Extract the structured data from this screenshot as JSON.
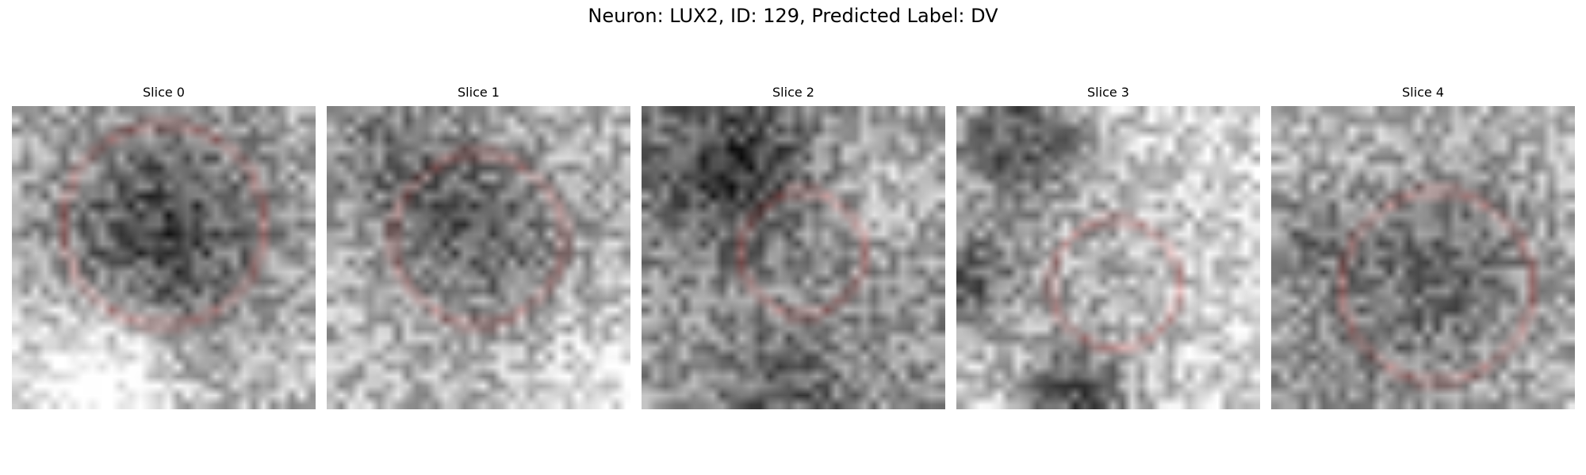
{
  "figure": {
    "title": "Neuron: LUX2, ID: 129, Predicted Label: DV",
    "contour_color": "#e31a1c",
    "colormap": "grayscale"
  },
  "panels": [
    {
      "title": "Slice 0",
      "seed": 11,
      "blobs": [
        [
          15.5,
          13.0,
          7.5,
          0.42
        ],
        [
          8,
          29,
          6,
          -0.45
        ],
        [
          29,
          27,
          3,
          -0.12
        ]
      ],
      "baseline": 0.68,
      "contour": {
        "center": [
          16.0,
          12.5
        ],
        "radius": 10.6
      }
    },
    {
      "seed": 23,
      "title": "Slice 1",
      "blobs": [
        [
          15.5,
          13.0,
          6.5,
          0.32
        ],
        [
          6,
          4,
          6,
          0.22
        ],
        [
          28,
          29,
          5,
          -0.2
        ]
      ],
      "baseline": 0.72,
      "contour": {
        "center": [
          16.0,
          14.0
        ],
        "radius": 9.1
      }
    },
    {
      "seed": 37,
      "title": "Slice 2",
      "blobs": [
        [
          9,
          6,
          6,
          0.35
        ],
        [
          15,
          30,
          5,
          0.2
        ],
        [
          26,
          8,
          5,
          -0.15
        ]
      ],
      "baseline": 0.58,
      "contour": {
        "center": [
          17.0,
          15.5
        ],
        "radius": 6.5
      }
    },
    {
      "seed": 41,
      "title": "Slice 3",
      "blobs": [
        [
          6,
          3,
          5,
          0.5
        ],
        [
          1,
          18,
          4,
          0.45
        ],
        [
          12,
          30,
          4,
          0.5
        ],
        [
          15,
          17,
          6,
          0.15
        ]
      ],
      "baseline": 0.82,
      "contour": {
        "center": [
          16.8,
          18.6
        ],
        "radius": 6.8
      }
    },
    {
      "seed": 53,
      "title": "Slice 4",
      "blobs": [
        [
          17.5,
          17.5,
          8,
          0.3
        ],
        [
          6,
          28,
          5,
          0.15
        ],
        [
          3,
          14,
          4,
          0.2
        ]
      ],
      "baseline": 0.72,
      "contour": {
        "center": [
          17.5,
          19.0
        ],
        "radius": 10.0
      }
    }
  ]
}
